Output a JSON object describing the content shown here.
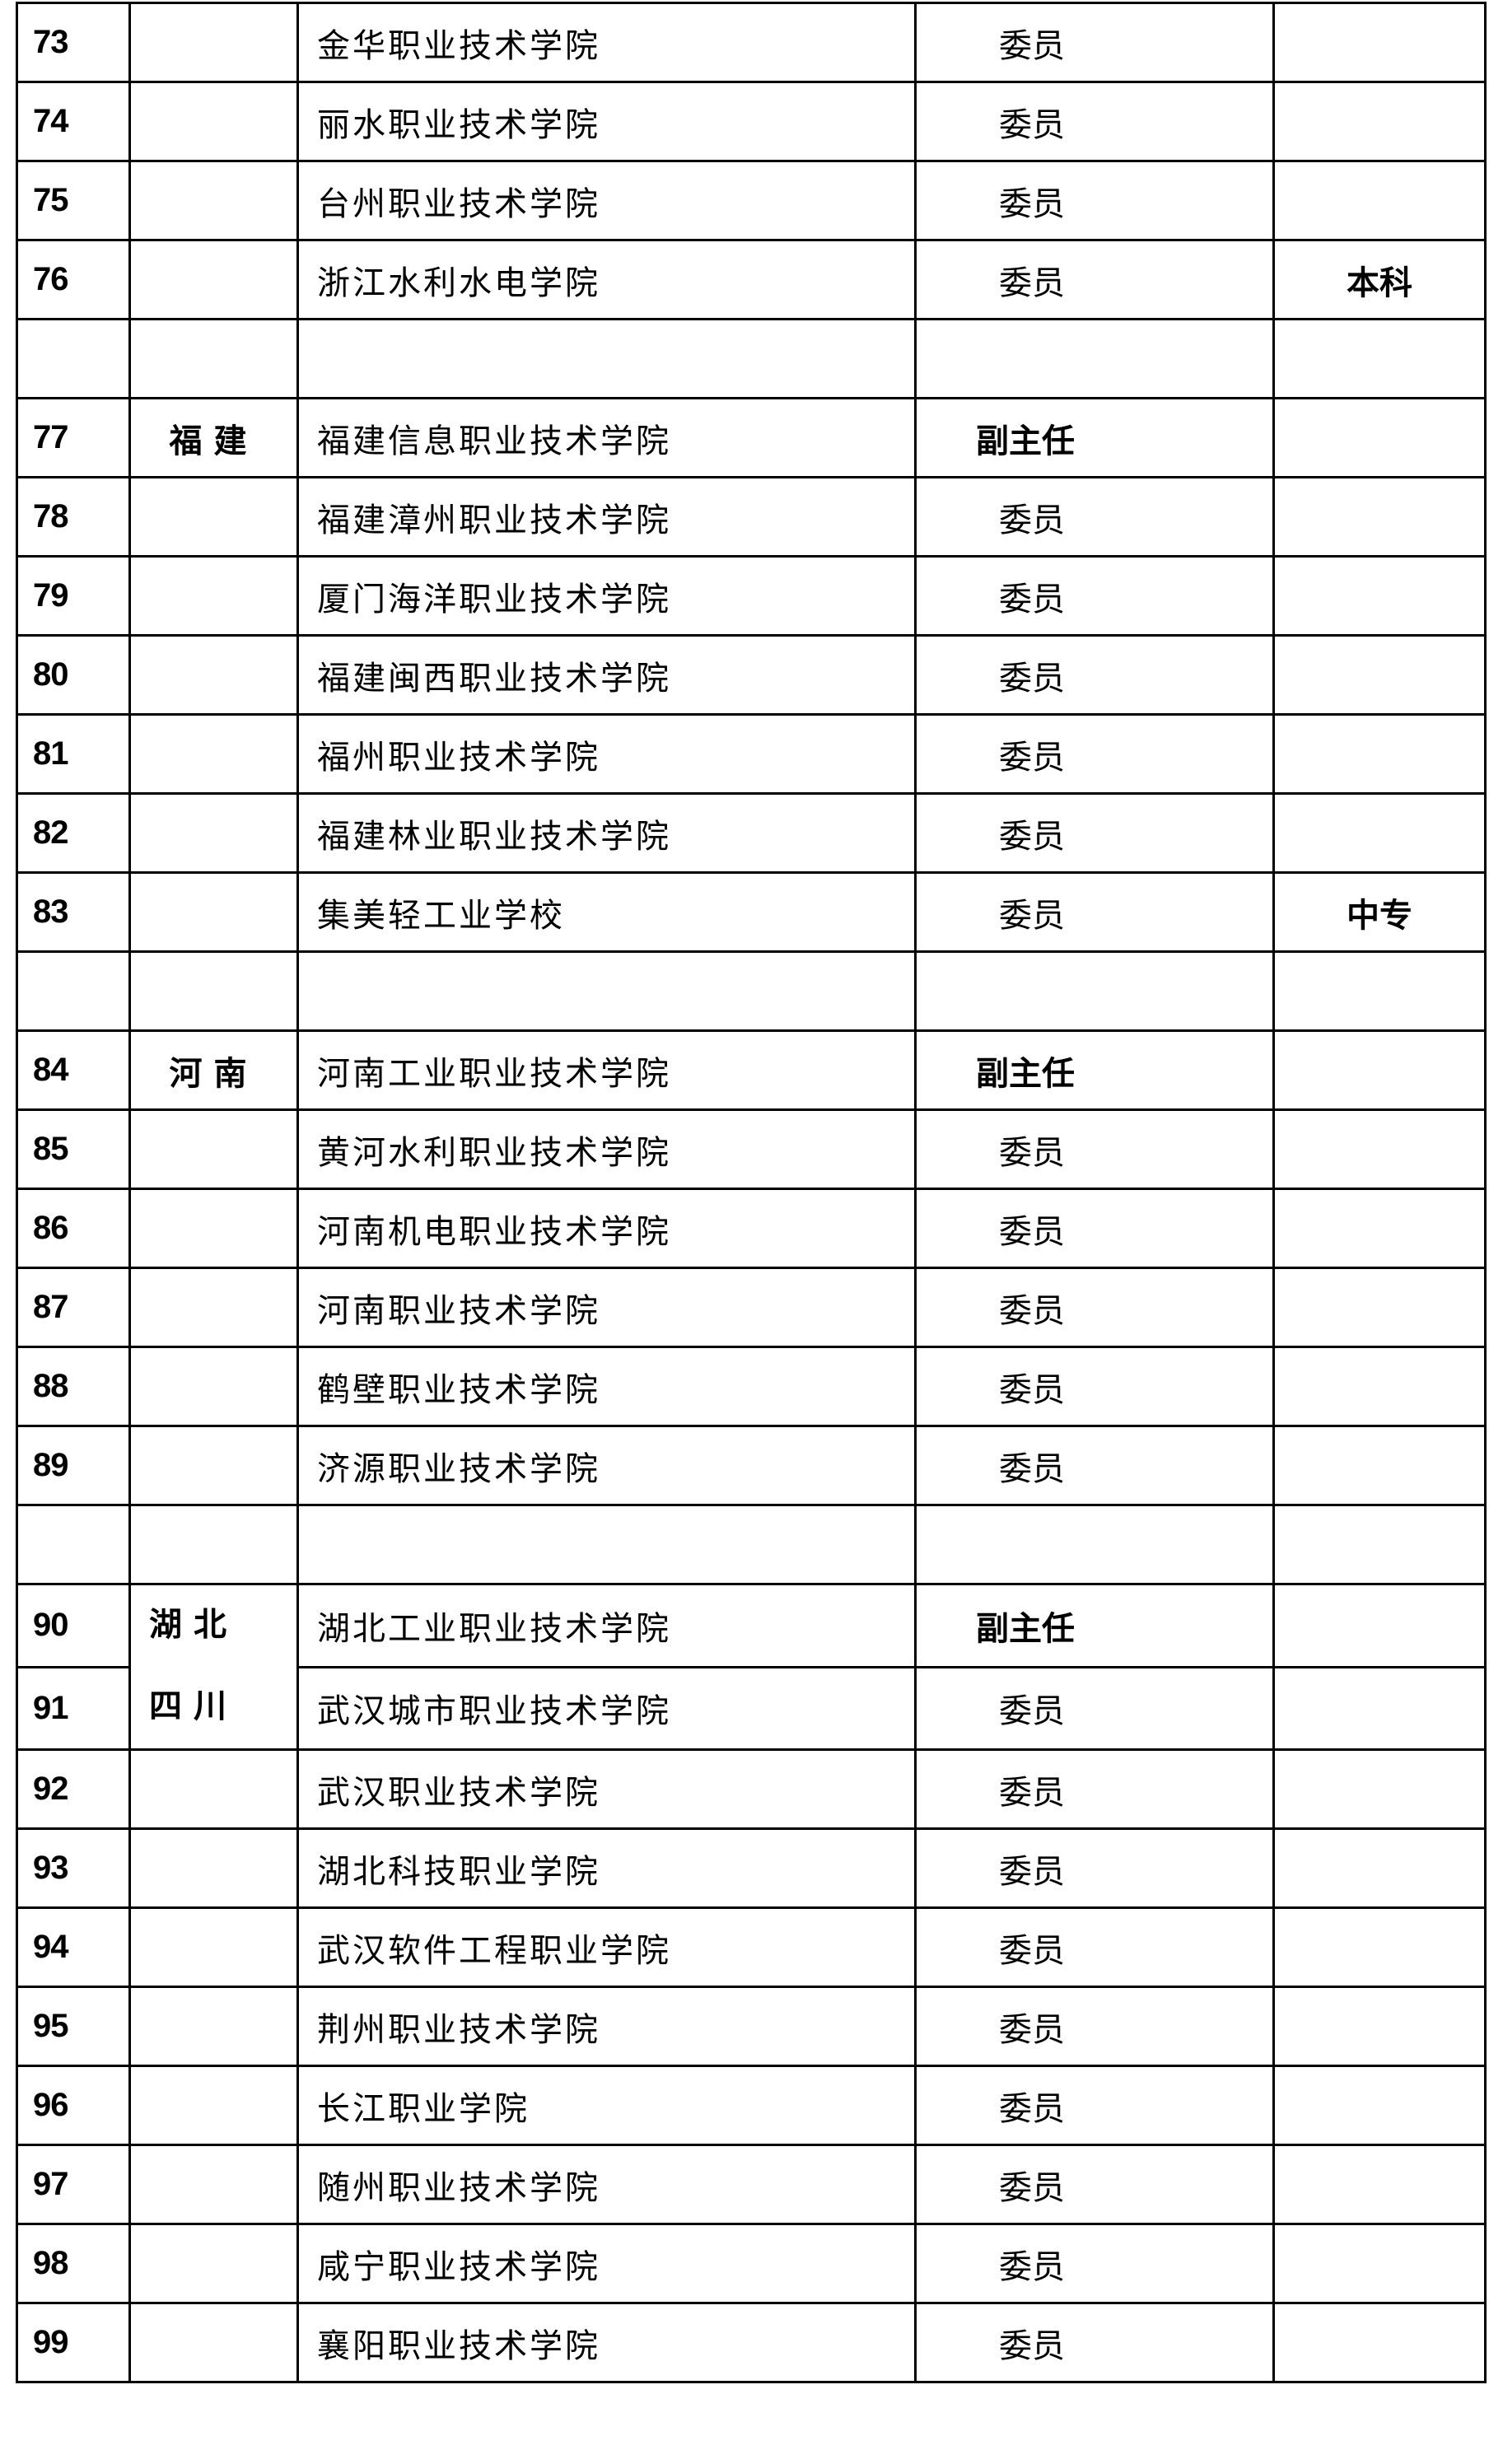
{
  "rows": [
    {
      "no": "73",
      "province": "",
      "name": "金华职业技术学院",
      "role": "委员",
      "role_bold": false,
      "note": ""
    },
    {
      "no": "74",
      "province": "",
      "name": "丽水职业技术学院",
      "role": "委员",
      "role_bold": false,
      "note": ""
    },
    {
      "no": "75",
      "province": "",
      "name": "台州职业技术学院",
      "role": "委员",
      "role_bold": false,
      "note": ""
    },
    {
      "no": "76",
      "province": "",
      "name": "浙江水利水电学院",
      "role": "委员",
      "role_bold": false,
      "note": "本科"
    },
    {
      "blank": true
    },
    {
      "no": "77",
      "province": "福建",
      "name": "福建信息职业技术学院",
      "role": "副主任",
      "role_bold": true,
      "note": ""
    },
    {
      "no": "78",
      "province": "",
      "name": "福建漳州职业技术学院",
      "role": "委员",
      "role_bold": false,
      "note": ""
    },
    {
      "no": "79",
      "province": "",
      "name": "厦门海洋职业技术学院",
      "role": "委员",
      "role_bold": false,
      "note": ""
    },
    {
      "no": "80",
      "province": "",
      "name": "福建闽西职业技术学院",
      "role": "委员",
      "role_bold": false,
      "note": ""
    },
    {
      "no": "81",
      "province": "",
      "name": "福州职业技术学院",
      "role": "委员",
      "role_bold": false,
      "note": ""
    },
    {
      "no": "82",
      "province": "",
      "name": "福建林业职业技术学院",
      "role": "委员",
      "role_bold": false,
      "note": ""
    },
    {
      "no": "83",
      "province": "",
      "name": "集美轻工业学校",
      "role": "委员",
      "role_bold": false,
      "note": "中专"
    },
    {
      "blank": true
    },
    {
      "no": "84",
      "province": "河南",
      "name": "河南工业职业技术学院",
      "role": "副主任",
      "role_bold": true,
      "note": ""
    },
    {
      "no": "85",
      "province": "",
      "name": "黄河水利职业技术学院",
      "role": "委员",
      "role_bold": false,
      "note": ""
    },
    {
      "no": "86",
      "province": "",
      "name": "河南机电职业技术学院",
      "role": "委员",
      "role_bold": false,
      "note": ""
    },
    {
      "no": "87",
      "province": "",
      "name": "河南职业技术学院",
      "role": "委员",
      "role_bold": false,
      "note": ""
    },
    {
      "no": "88",
      "province": "",
      "name": "鹤壁职业技术学院",
      "role": "委员",
      "role_bold": false,
      "note": ""
    },
    {
      "no": "89",
      "province": "",
      "name": "济源职业技术学院",
      "role": "委员",
      "role_bold": false,
      "note": ""
    },
    {
      "blank": true
    },
    {
      "no": "90",
      "province": "湖北",
      "province_line2": "四川",
      "span": 2,
      "name": "湖北工业职业技术学院",
      "role": "副主任",
      "role_bold": true,
      "note": ""
    },
    {
      "no": "91",
      "province": null,
      "name": "武汉城市职业技术学院",
      "role": "委员",
      "role_bold": false,
      "note": ""
    },
    {
      "no": "92",
      "province": "",
      "name": "武汉职业技术学院",
      "role": "委员",
      "role_bold": false,
      "note": ""
    },
    {
      "no": "93",
      "province": "",
      "name": "湖北科技职业学院",
      "role": "委员",
      "role_bold": false,
      "note": ""
    },
    {
      "no": "94",
      "province": "",
      "name": "武汉软件工程职业学院",
      "role": "委员",
      "role_bold": false,
      "note": ""
    },
    {
      "no": "95",
      "province": "",
      "name": "荆州职业技术学院",
      "role": "委员",
      "role_bold": false,
      "note": ""
    },
    {
      "no": "96",
      "province": "",
      "name": "长江职业学院",
      "role": "委员",
      "role_bold": false,
      "note": ""
    },
    {
      "no": "97",
      "province": "",
      "name": "随州职业技术学院",
      "role": "委员",
      "role_bold": false,
      "note": ""
    },
    {
      "no": "98",
      "province": "",
      "name": "咸宁职业技术学院",
      "role": "委员",
      "role_bold": false,
      "note": ""
    },
    {
      "no": "99",
      "province": "",
      "name": "襄阳职业技术学院",
      "role": "委员",
      "role_bold": false,
      "note": ""
    }
  ]
}
